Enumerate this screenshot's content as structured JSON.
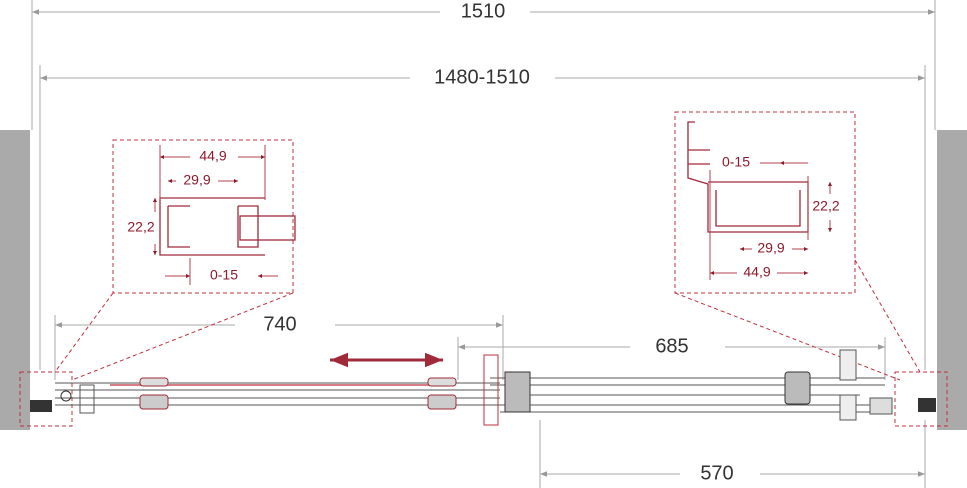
{
  "dimensions": {
    "overall_width": "1510",
    "opening_range": "1480-1510",
    "left_panel": "740",
    "right_panel": "685",
    "passage": "570"
  },
  "left_profile": {
    "outer": "44,9",
    "inner": "29,9",
    "height": "22,2",
    "adjust": "0-15"
  },
  "right_profile": {
    "adjust": "0-15",
    "height": "22,2",
    "inner": "29,9",
    "outer": "44,9"
  }
}
